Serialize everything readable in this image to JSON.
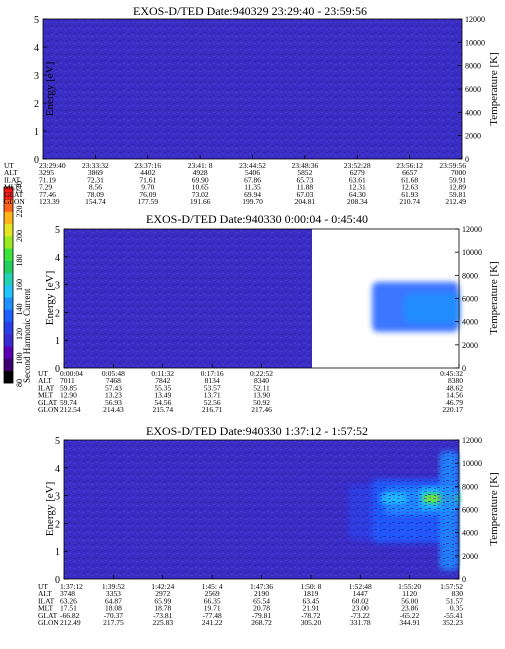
{
  "colorbar": {
    "label": "Second Harmonic Current",
    "ticks": [
      "80",
      "100",
      "120",
      "140",
      "160",
      "180",
      "200",
      "220",
      "240"
    ],
    "colors": [
      "#000000",
      "#3c0070",
      "#5a00b4",
      "#3a2bd0",
      "#2a40e6",
      "#1f5fff",
      "#1f90ff",
      "#1fc6ff",
      "#22d0b4",
      "#22d060",
      "#3ce33c",
      "#9ceb22",
      "#e6e622",
      "#ffb41a",
      "#ff641a",
      "#ff1a1a"
    ]
  },
  "row_labels": [
    "UT",
    "ALT",
    "ILAT",
    "MLT",
    "GLAT",
    "GLON"
  ],
  "chart_data": [
    {
      "type": "heatmap",
      "title": "EXOS-D/TED   Date:940329   23:29:40 - 23:59:56",
      "ylabel": "Energy [eV]",
      "y2label": "Temperature [K]",
      "ylim": [
        0,
        5
      ],
      "y2lim": [
        0,
        12000
      ],
      "yticks": [
        "0",
        "1",
        "2",
        "3",
        "4",
        "5"
      ],
      "y2ticks": [
        "0",
        "2000",
        "4000",
        "6000",
        "8000",
        "10000",
        "12000"
      ],
      "data_extent": 1.0,
      "background": "#3a2dc4",
      "features": [],
      "columns": [
        [
          "23:29:40",
          "3295",
          "71.19",
          "7.29",
          "77.46",
          "123.39"
        ],
        [
          "23:33:32",
          "3869",
          "72.31",
          "8.56",
          "78.09",
          "154.74"
        ],
        [
          "23:37:16",
          "4402",
          "71.61",
          "9.70",
          "76.09",
          "177.59"
        ],
        [
          "23:41: 8",
          "4928",
          "69.90",
          "10.65",
          "73.02",
          "191.66"
        ],
        [
          "23:44:52",
          "5406",
          "67.86",
          "11.35",
          "69.94",
          "199.70"
        ],
        [
          "23:48:36",
          "5852",
          "65.73",
          "11.88",
          "67.03",
          "204.81"
        ],
        [
          "23:52:28",
          "6279",
          "63.61",
          "12.31",
          "64.30",
          "208.34"
        ],
        [
          "23:56:12",
          "6657",
          "61.68",
          "12.63",
          "61.93",
          "210.74"
        ],
        [
          "23:59:56",
          "7000",
          "59.91",
          "12.89",
          "59.81",
          "212.49"
        ]
      ]
    },
    {
      "type": "heatmap",
      "title": "EXOS-D/TED   Date:940330   0:00:04 - 0:45:40",
      "ylabel": "Energy [eV]",
      "y2label": "Temperature [K]",
      "ylim": [
        0,
        5
      ],
      "y2lim": [
        0,
        12000
      ],
      "yticks": [
        "0",
        "1",
        "2",
        "3",
        "4",
        "5"
      ],
      "y2ticks": [
        "0",
        "2000",
        "4000",
        "6000",
        "8000",
        "10000",
        "12000"
      ],
      "data_extent": 0.48,
      "background": "#3a2dc4",
      "features": [
        {
          "x": [
            0.78,
            1.0
          ],
          "y": [
            1.3,
            3.1
          ],
          "color": "#1f5fff"
        },
        {
          "x": [
            0.86,
            1.0
          ],
          "y": [
            1.6,
            2.7
          ],
          "color": "#1f90ff"
        }
      ],
      "columns": [
        [
          "0:00:04",
          "7011",
          "59.85",
          "12.90",
          "59.74",
          "212.54"
        ],
        [
          "0:05:48",
          "7468",
          "57.43",
          "13.23",
          "56.93",
          "214.43"
        ],
        [
          "0:11:32",
          "7842",
          "55.35",
          "13.49",
          "54.56",
          "215.74"
        ],
        [
          "0:17:16",
          "8134",
          "53.57",
          "13.71",
          "52.56",
          "216.71"
        ],
        [
          "0:22:52",
          "8340",
          "52.11",
          "13.90",
          "50.92",
          "217.46"
        ],
        [
          "",
          "",
          "",
          "",
          "",
          ""
        ],
        [
          "",
          "",
          "",
          "",
          "",
          ""
        ],
        [
          "",
          "",
          "",
          "",
          "",
          ""
        ],
        [
          "0:45:32",
          "8380",
          "48.62",
          "14.56",
          "46.79",
          "220.17"
        ]
      ]
    },
    {
      "type": "heatmap",
      "title": "EXOS-D/TED   Date:940330   1:37:12 - 1:57:52",
      "ylabel": "Energy [eV]",
      "y2label": "Temperature [K]",
      "ylim": [
        0,
        5
      ],
      "y2lim": [
        0,
        12000
      ],
      "yticks": [
        "0",
        "1",
        "2",
        "3",
        "4",
        "5"
      ],
      "y2ticks": [
        "0",
        "2000",
        "4000",
        "6000",
        "8000",
        "10000",
        "12000"
      ],
      "data_extent": 1.0,
      "background": "#3a2dc4",
      "features": [
        {
          "x": [
            0.72,
            0.97
          ],
          "y": [
            1.4,
            3.4
          ],
          "color": "#2a40e6"
        },
        {
          "x": [
            0.78,
            0.96
          ],
          "y": [
            1.3,
            3.6
          ],
          "color": "#1f5fff"
        },
        {
          "x": [
            0.81,
            0.98
          ],
          "y": [
            2.3,
            3.3
          ],
          "color": "#1f90ff"
        },
        {
          "x": [
            0.8,
            0.87
          ],
          "y": [
            2.7,
            3.1
          ],
          "color": "#1fc6ff"
        },
        {
          "x": [
            0.9,
            1.0
          ],
          "y": [
            2.5,
            3.3
          ],
          "color": "#1fc6ff"
        },
        {
          "x": [
            0.91,
            1.0
          ],
          "y": [
            2.7,
            3.1
          ],
          "color": "#3ce33c"
        },
        {
          "x": [
            0.91,
            1.0
          ],
          "y": [
            2.8,
            3.0
          ],
          "color": "#9ceb22"
        },
        {
          "x": [
            0.95,
            1.0
          ],
          "y": [
            0.3,
            4.6
          ],
          "color": "#1f90ff"
        }
      ],
      "columns": [
        [
          "1:37:12",
          "3748",
          "63.26",
          "17.51",
          "-66.82",
          "212.49"
        ],
        [
          "1:39:52",
          "3353",
          "64.87",
          "18.08",
          "-70.37",
          "217.75"
        ],
        [
          "1:42:24",
          "2972",
          "65.99",
          "18.78",
          "-73.81",
          "225.83"
        ],
        [
          "1:45: 4",
          "2569",
          "66.35",
          "19.71",
          "-77.48",
          "241.22"
        ],
        [
          "1:47:36",
          "2190",
          "65.54",
          "20.78",
          "-79.81",
          "268.72"
        ],
        [
          "1:50: 8",
          "1819",
          "63.45",
          "21.91",
          "-78.72",
          "305.20"
        ],
        [
          "1:52:48",
          "1447",
          "60.02",
          "23.00",
          "-73.22",
          "331.78"
        ],
        [
          "1:55:20",
          "1120",
          "56.00",
          "23.86",
          "-65.22",
          "344.91"
        ],
        [
          "1:57:52",
          "830",
          "51.57",
          "0.35",
          "-55.41",
          "352.23"
        ]
      ]
    }
  ]
}
